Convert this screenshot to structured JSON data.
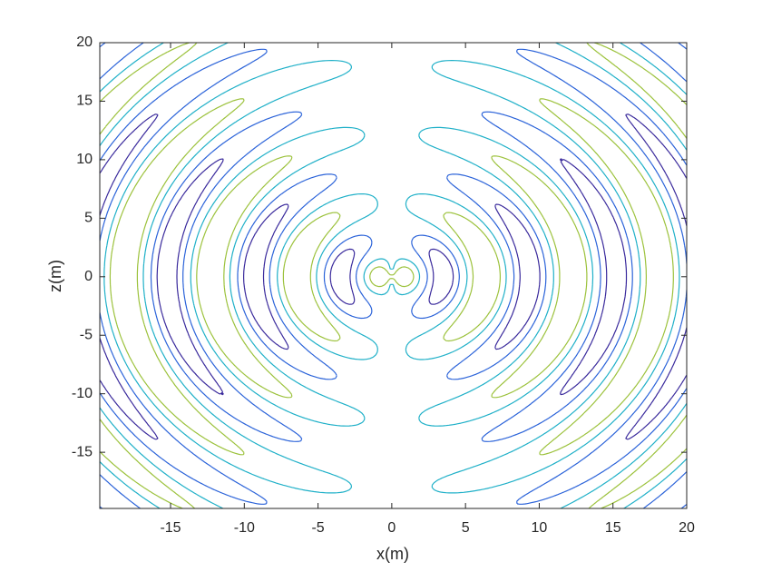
{
  "chart_data": {
    "type": "contour",
    "x_label": "x(m)",
    "y_label": "z(m)",
    "xlim": [
      -19.8,
      20
    ],
    "ylim": [
      -19.8,
      20
    ],
    "xticks": [
      -15,
      -10,
      -5,
      0,
      5,
      10,
      15,
      20
    ],
    "yticks": [
      -15,
      -10,
      -5,
      0,
      5,
      10,
      15,
      20
    ],
    "levels": [
      -0.75,
      -0.4,
      0.15,
      0.55
    ],
    "colors": [
      "#3a2a9c",
      "#2b63d9",
      "#1fb0c8",
      "#9cc23c"
    ]
  }
}
